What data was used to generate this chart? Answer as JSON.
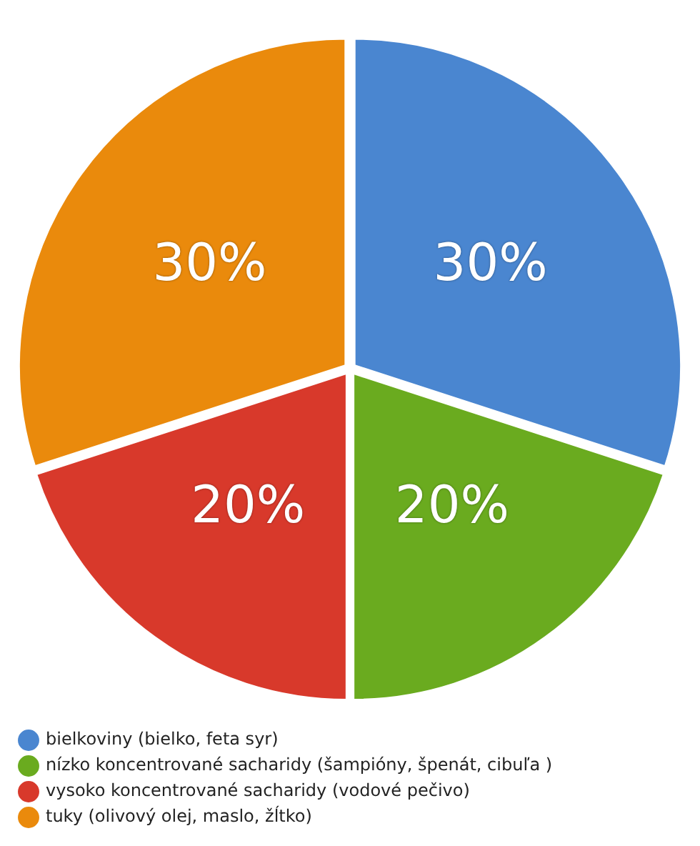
{
  "chart_data": {
    "type": "pie",
    "categories": [
      "bielkoviny (bielko, feta syr)",
      "nízko koncentrované sacharidy (šampióny, špenát, cibuľa )",
      "vysoko koncentrované sacharidy (vodové pečivo)",
      "tuky (olivový olej, maslo, žĺtko)"
    ],
    "values": [
      30,
      20,
      20,
      30
    ],
    "colors": [
      "#4a86d0",
      "#6aab1f",
      "#d8392b",
      "#ea8a0c"
    ],
    "value_labels": [
      "30%",
      "20%",
      "20%",
      "30%"
    ],
    "legend": "bottom"
  }
}
